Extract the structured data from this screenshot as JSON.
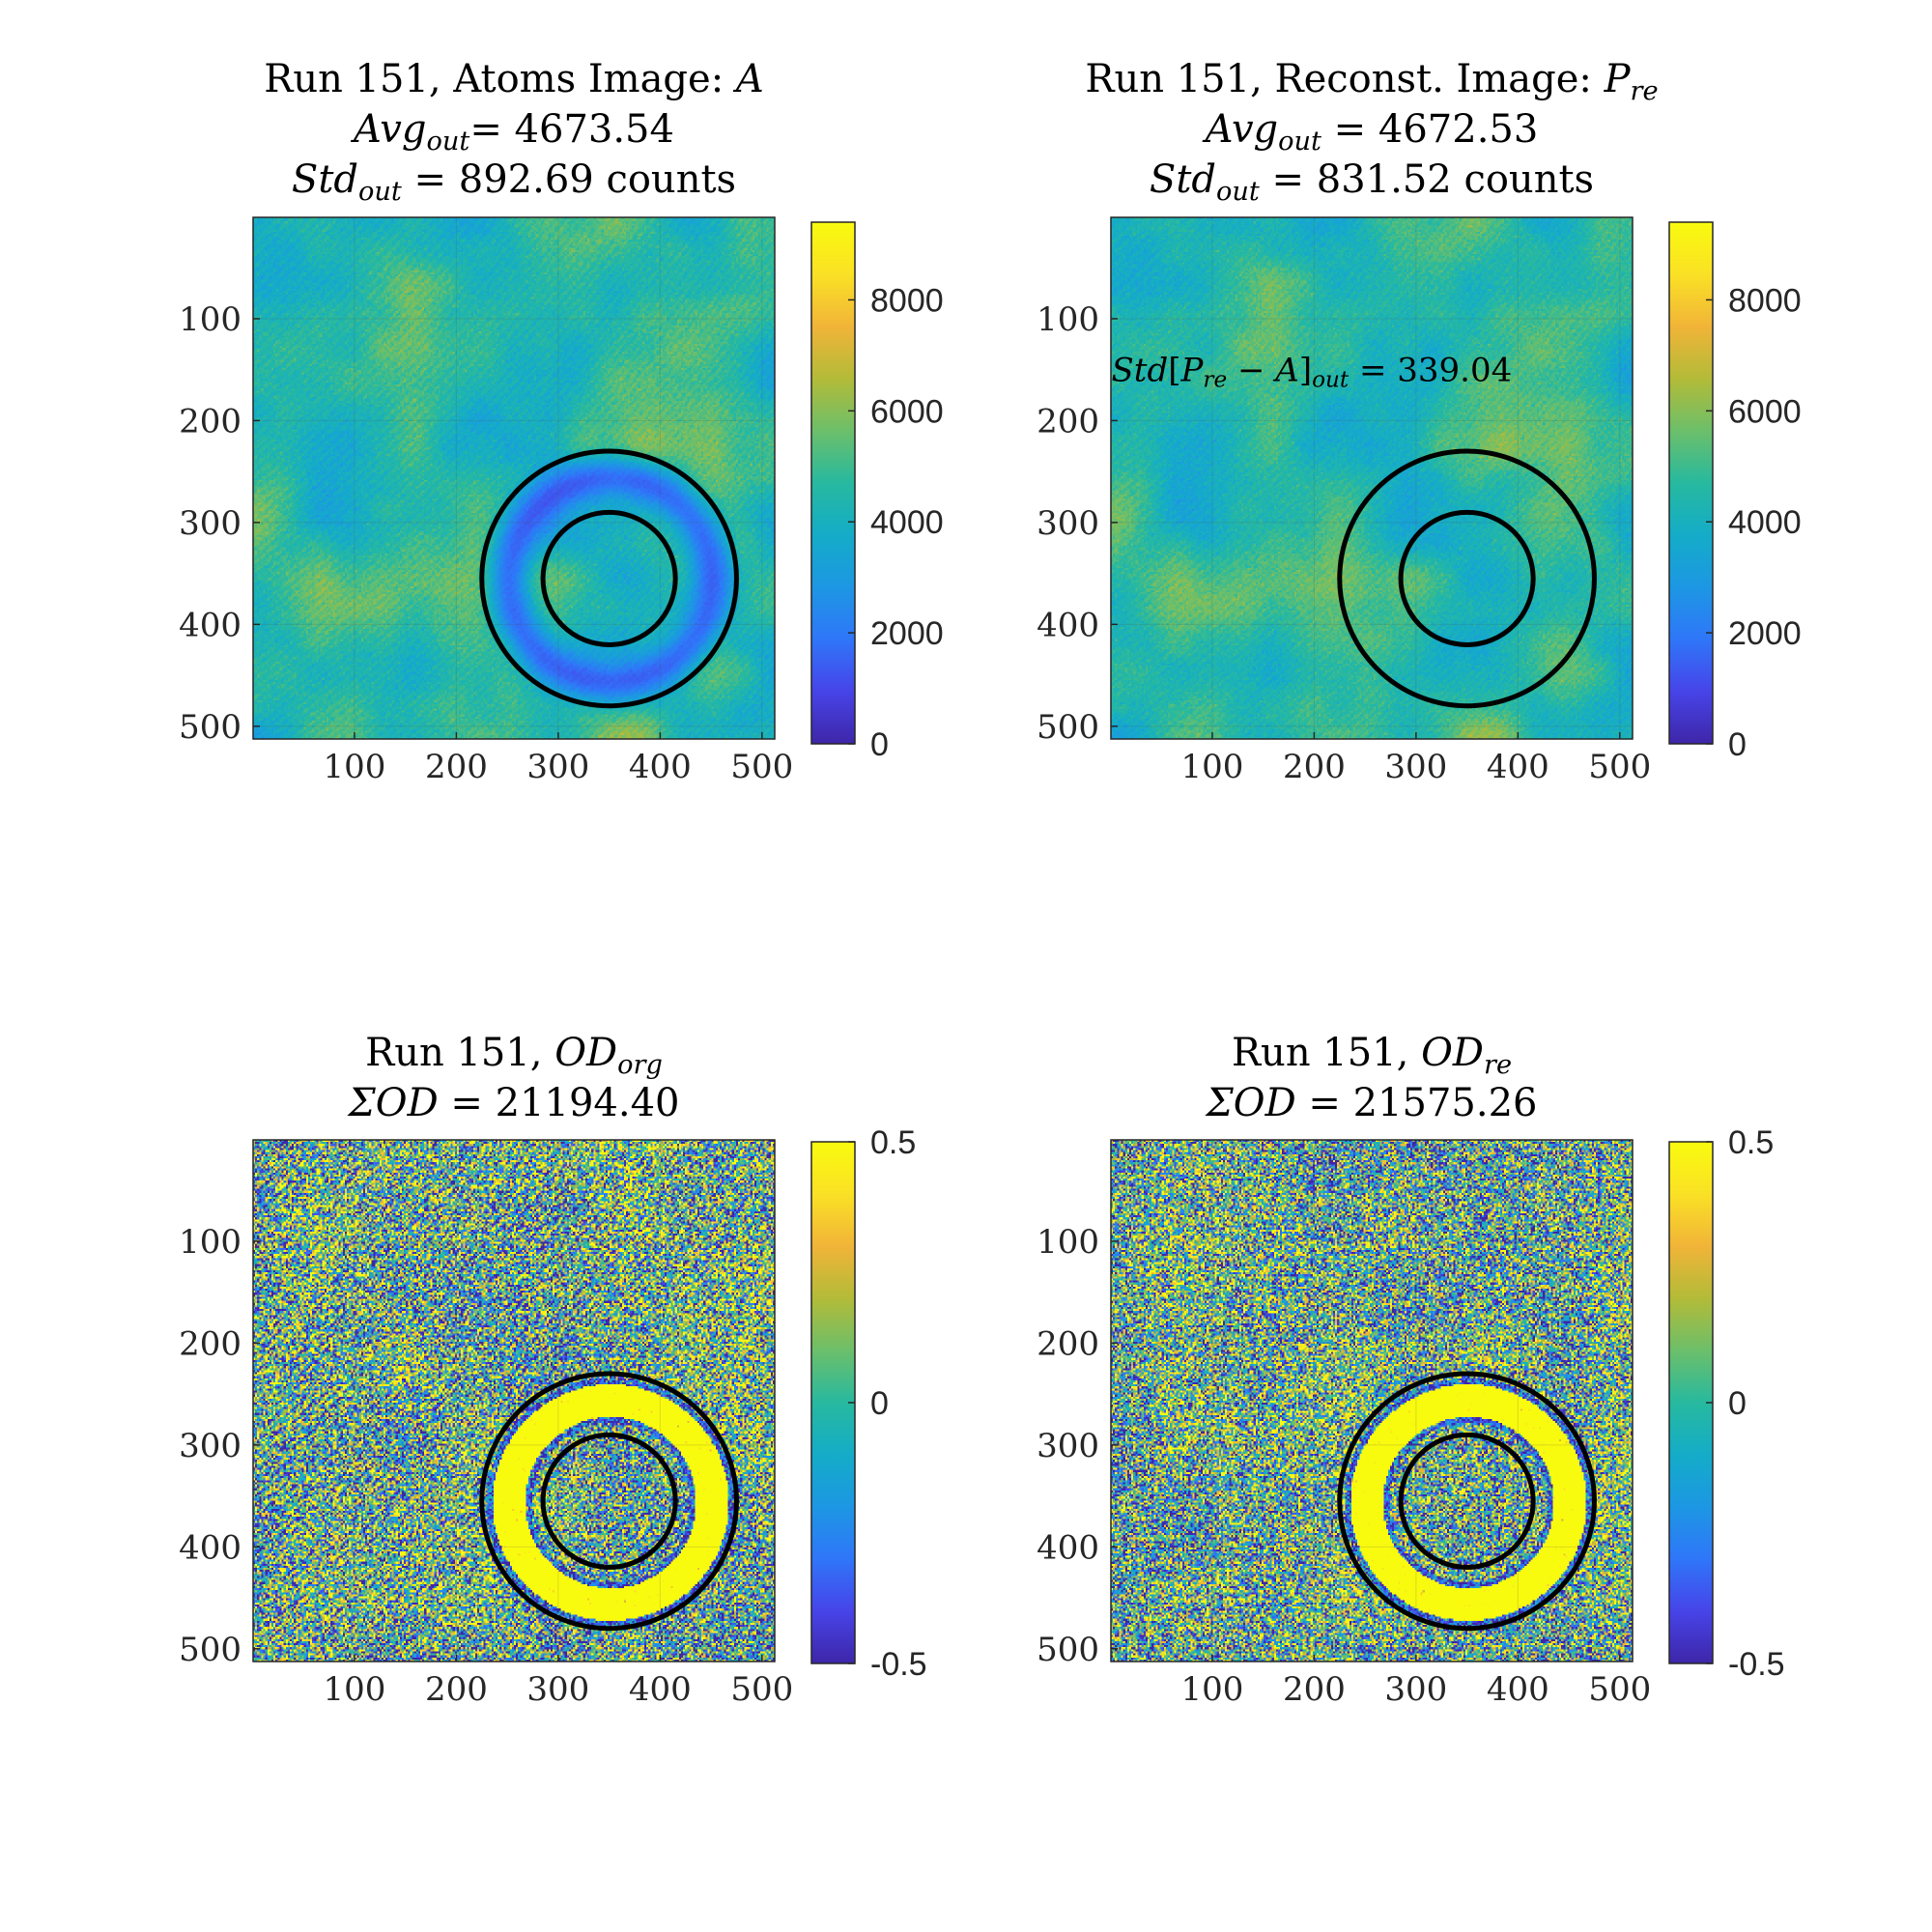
{
  "chart_data": [
    {
      "type": "heatmap",
      "title": "Run 151, Atoms Image: A",
      "title_lines": [
        [
          {
            "t": "Run 151, Atoms Image: "
          },
          {
            "t": "A",
            "i": true
          }
        ],
        [
          {
            "t": "Avg",
            "i": true
          },
          {
            "t": "out",
            "i": true,
            "sub": true
          },
          {
            "t": "= 4673.54"
          }
        ],
        [
          {
            "t": "Std",
            "i": true
          },
          {
            "t": "out",
            "i": true,
            "sub": true
          },
          {
            "t": " = 892.69 counts"
          }
        ]
      ],
      "xlim": [
        1,
        512
      ],
      "ylim": [
        1,
        512
      ],
      "y_reversed": true,
      "xticks": [
        100,
        200,
        300,
        400,
        500
      ],
      "yticks": [
        100,
        200,
        300,
        400,
        500
      ],
      "colorbar": {
        "min": 0,
        "max": 9400,
        "ticks": [
          0,
          2000,
          4000,
          6000,
          8000
        ],
        "tick_labels": [
          "0",
          "2000",
          "4000",
          "6000",
          "8000"
        ]
      },
      "background_level": 4673.54,
      "ring": {
        "center_x": 350,
        "center_y": 355,
        "r_inner": 65,
        "r_outer": 125,
        "atom_ring_radius": 100,
        "atom_ring_halfwidth": 15,
        "atom_level": 1500
      },
      "fringe_contrast": 0.15,
      "annotation": null,
      "seed": 11
    },
    {
      "type": "heatmap",
      "title": "Run 151, Reconst. Image: P_re",
      "title_lines": [
        [
          {
            "t": "Run 151, Reconst. Image: "
          },
          {
            "t": "P",
            "i": true
          },
          {
            "t": "re",
            "i": true,
            "sub": true
          }
        ],
        [
          {
            "t": "Avg",
            "i": true
          },
          {
            "t": "out",
            "i": true,
            "sub": true
          },
          {
            "t": " = 4672.53"
          }
        ],
        [
          {
            "t": "Std",
            "i": true
          },
          {
            "t": "out",
            "i": true,
            "sub": true
          },
          {
            "t": " = 831.52 counts"
          }
        ]
      ],
      "xlim": [
        1,
        512
      ],
      "ylim": [
        1,
        512
      ],
      "y_reversed": true,
      "xticks": [
        100,
        200,
        300,
        400,
        500
      ],
      "yticks": [
        100,
        200,
        300,
        400,
        500
      ],
      "colorbar": {
        "min": 0,
        "max": 9400,
        "ticks": [
          0,
          2000,
          4000,
          6000,
          8000
        ],
        "tick_labels": [
          "0",
          "2000",
          "4000",
          "6000",
          "8000"
        ]
      },
      "background_level": 4672.53,
      "ring": {
        "center_x": 350,
        "center_y": 355,
        "r_inner": 65,
        "r_outer": 125,
        "atom_ring_radius": null,
        "atom_ring_halfwidth": null,
        "atom_level": null
      },
      "fringe_contrast": 0.12,
      "annotation": {
        "x": 1,
        "y": 150,
        "runs": [
          {
            "t": "Std",
            "i": true
          },
          {
            "t": "[",
            "i": false
          },
          {
            "t": "P",
            "i": true
          },
          {
            "t": "re",
            "i": true,
            "sub": true
          },
          {
            "t": " − "
          },
          {
            "t": "A",
            "i": true
          },
          {
            "t": "]"
          },
          {
            "t": "out",
            "i": true,
            "sub": true
          },
          {
            "t": " = 339.04"
          }
        ]
      },
      "seed": 11
    },
    {
      "type": "heatmap",
      "title": "Run 151, OD_org",
      "title_lines": [
        [
          {
            "t": "Run 151, "
          },
          {
            "t": "OD",
            "i": true
          },
          {
            "t": "org",
            "i": true,
            "sub": true
          }
        ],
        [
          {
            "t": "ΣOD",
            "i": true
          },
          {
            "t": " = 21194.40"
          }
        ]
      ],
      "xlim": [
        1,
        512
      ],
      "ylim": [
        1,
        512
      ],
      "y_reversed": true,
      "xticks": [
        100,
        200,
        300,
        400,
        500
      ],
      "yticks": [
        100,
        200,
        300,
        400,
        500
      ],
      "colorbar": {
        "min": -0.5,
        "max": 0.5,
        "ticks": [
          -0.5,
          0,
          0.5
        ],
        "tick_labels": [
          "-0.5",
          "0",
          "0.5"
        ]
      },
      "background_level": 0,
      "ring": {
        "center_x": 350,
        "center_y": 355,
        "r_inner": 65,
        "r_outer": 125,
        "atom_ring_radius": 100,
        "atom_ring_halfwidth": 16,
        "atom_level": 0.8
      },
      "fringe_contrast": 0.25,
      "annotation": null,
      "seed": 23
    },
    {
      "type": "heatmap",
      "title": "Run 151, OD_re",
      "title_lines": [
        [
          {
            "t": "Run 151, "
          },
          {
            "t": "OD",
            "i": true
          },
          {
            "t": "re",
            "i": true,
            "sub": true
          }
        ],
        [
          {
            "t": "ΣOD",
            "i": true
          },
          {
            "t": " = 21575.26"
          }
        ]
      ],
      "xlim": [
        1,
        512
      ],
      "ylim": [
        1,
        512
      ],
      "y_reversed": true,
      "xticks": [
        100,
        200,
        300,
        400,
        500
      ],
      "yticks": [
        100,
        200,
        300,
        400,
        500
      ],
      "colorbar": {
        "min": -0.5,
        "max": 0.5,
        "ticks": [
          -0.5,
          0,
          0.5
        ],
        "tick_labels": [
          "-0.5",
          "0",
          "0.5"
        ]
      },
      "background_level": 0,
      "ring": {
        "center_x": 350,
        "center_y": 355,
        "r_inner": 65,
        "r_outer": 125,
        "atom_ring_radius": 100,
        "atom_ring_halfwidth": 16,
        "atom_level": 0.8
      },
      "fringe_contrast": 0.05,
      "annotation": null,
      "seed": 37
    }
  ],
  "colormap": {
    "name": "parula",
    "stops": [
      "#3e26a8",
      "#4744e8",
      "#2f76f9",
      "#1d97e3",
      "#14acc8",
      "#27b99f",
      "#6cbf6a",
      "#b3bb38",
      "#f1b438",
      "#fae125",
      "#f9fb0e"
    ]
  }
}
